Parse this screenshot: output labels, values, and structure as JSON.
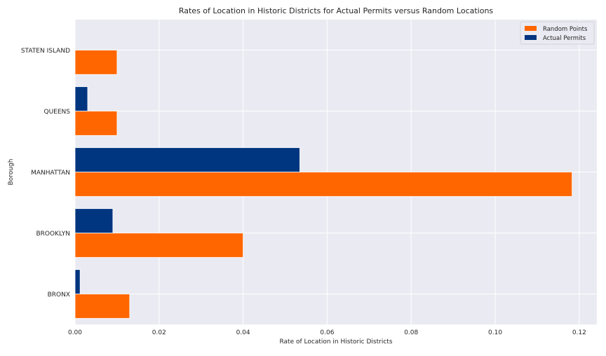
{
  "chart_data": {
    "type": "bar",
    "orientation": "horizontal",
    "title": "Rates of Location in Historic Districts for Actual Permits versus Random Locations",
    "xlabel": "Rate of Location in Historic Districts",
    "ylabel": "Borough",
    "categories": [
      "BRONX",
      "BROOKLYN",
      "MANHATTAN",
      "QUEENS",
      "STATEN ISLAND"
    ],
    "series": [
      {
        "name": "Random Points",
        "color": "#ff6600",
        "values": [
          0.013,
          0.04,
          0.1183,
          0.01,
          0.01
        ]
      },
      {
        "name": "Actual Permits",
        "color": "#003580",
        "values": [
          0.0012,
          0.009,
          0.0535,
          0.003,
          0.0
        ]
      }
    ],
    "xlim": [
      0,
      0.1242
    ],
    "xticks": [
      "0.00",
      "0.02",
      "0.04",
      "0.06",
      "0.08",
      "0.10",
      "0.12"
    ],
    "xtick_values": [
      0,
      0.02,
      0.04,
      0.06,
      0.08,
      0.1,
      0.12
    ],
    "grid": true,
    "legend_position": "top-right",
    "background_color": "#eaeaf2",
    "grid_color": "#ffffff"
  }
}
